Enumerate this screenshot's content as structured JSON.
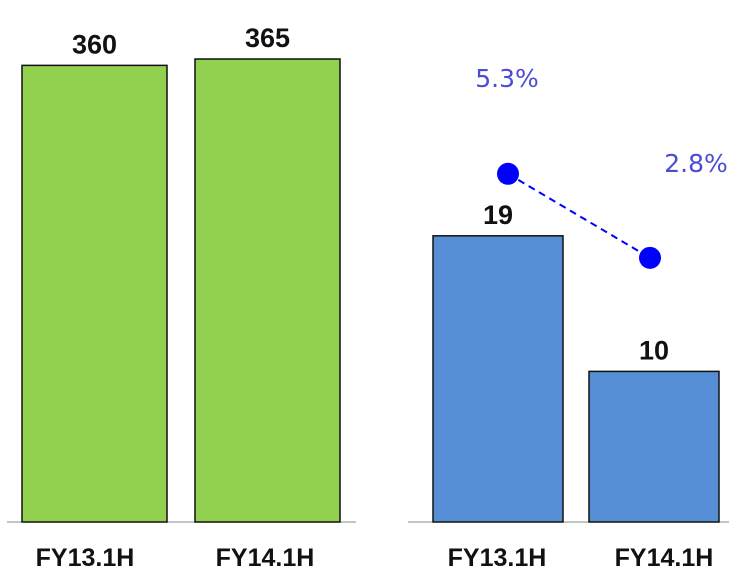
{
  "chart_data": [
    {
      "type": "bar",
      "categories": [
        "FY13.1H",
        "FY14.1H"
      ],
      "values": [
        360,
        365
      ],
      "data_labels": [
        "360",
        "365"
      ],
      "ylim": [
        0,
        380
      ],
      "bar_color": "#92d050"
    },
    {
      "type": "bar",
      "categories": [
        "FY13.1H",
        "FY14.1H"
      ],
      "values": [
        19,
        10
      ],
      "data_labels": [
        "19",
        "10"
      ],
      "ylim": [
        0,
        32
      ],
      "bar_color": "#558ed5",
      "line_series": {
        "values": [
          5.3,
          2.8
        ],
        "data_labels": [
          "5.3%",
          "2.8%"
        ],
        "color": "#0000ff",
        "style": "dashed"
      }
    }
  ]
}
